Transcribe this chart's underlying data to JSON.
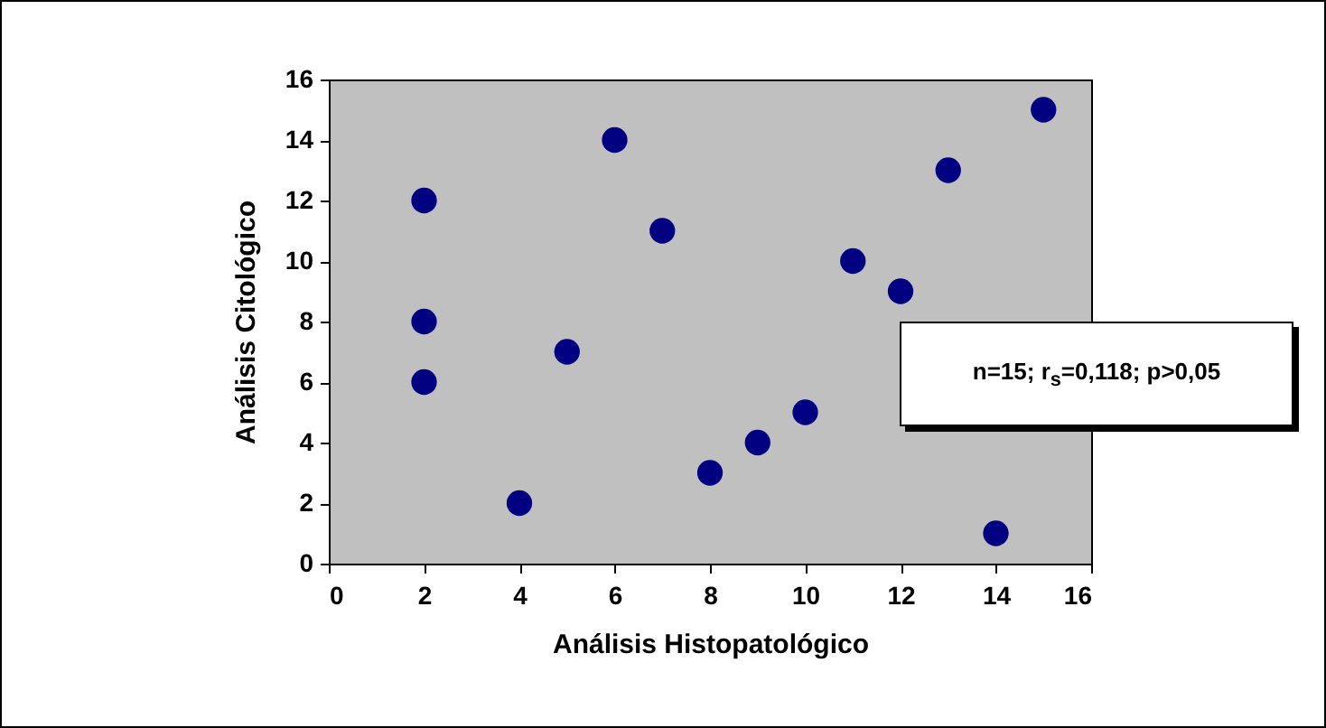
{
  "chart_data": {
    "type": "scatter",
    "xlabel": "Análisis Histopatológico",
    "ylabel": "Análisis Citológico",
    "x": [
      2,
      2,
      2,
      4,
      5,
      6,
      7,
      8,
      9,
      10,
      11,
      12,
      13,
      14,
      15
    ],
    "series": [
      {
        "color": "#000080",
        "values": [
          12,
          8,
          6,
          2,
          7,
          14,
          11,
          3,
          4,
          5,
          10,
          9,
          13,
          1,
          15
        ]
      }
    ],
    "xlim": [
      0,
      16
    ],
    "xticks": [
      0,
      2,
      4,
      6,
      8,
      10,
      12,
      14,
      16
    ],
    "ylim": [
      0,
      16
    ],
    "yticks": [
      0,
      2,
      4,
      6,
      8,
      10,
      12,
      14,
      16
    ],
    "marker": "circle",
    "annotations": [
      "n=15; r$_{s}$=0,118; p>0,05"
    ]
  }
}
